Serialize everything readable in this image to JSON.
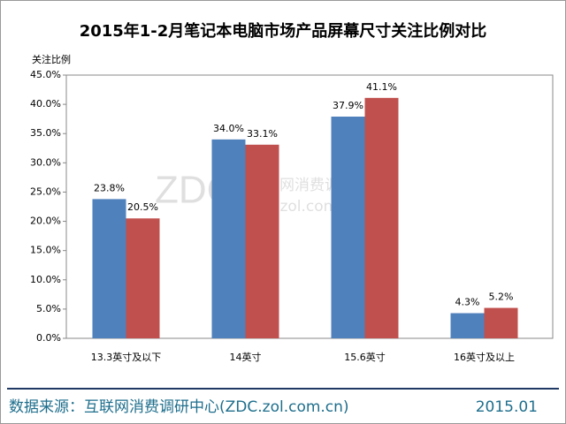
{
  "chart_data": {
    "type": "bar",
    "title": "2015年1-2月笔记本电脑市场产品屏幕尺寸关注比例对比",
    "y_label": "关注比例",
    "categories": [
      "13.3英寸及以下",
      "14英寸",
      "15.6英寸",
      "16英寸及以上"
    ],
    "series": [
      {
        "color": "#4f81bd",
        "values": [
          23.8,
          34.0,
          37.9,
          4.3
        ],
        "value_labels": [
          "23.8%",
          "34.0%",
          "37.9%",
          "4.3%"
        ]
      },
      {
        "color": "#c0504d",
        "values": [
          20.5,
          33.1,
          41.1,
          5.2
        ],
        "value_labels": [
          "20.5%",
          "33.1%",
          "41.1%",
          "5.2%"
        ]
      }
    ],
    "ylim": [
      0,
      45
    ],
    "yticks": [
      {
        "value": 0,
        "label": "0.0%"
      },
      {
        "value": 5,
        "label": "5.0%"
      },
      {
        "value": 10,
        "label": "10.0%"
      },
      {
        "value": 15,
        "label": "15.0%"
      },
      {
        "value": 20,
        "label": "20.0%"
      },
      {
        "value": 25,
        "label": "25.0%"
      },
      {
        "value": 30,
        "label": "30.0%"
      },
      {
        "value": 35,
        "label": "35.0%"
      },
      {
        "value": 40,
        "label": "40.0%"
      },
      {
        "value": 45,
        "label": "45.0%"
      }
    ],
    "watermark": {
      "logo": "ZDC",
      "name": "互联网消费调研中心",
      "url": "zdc.zol.com.cn"
    },
    "source": "数据来源：互联网消费调研中心(ZDC.zol.com.cn)",
    "date": "2015.01"
  }
}
